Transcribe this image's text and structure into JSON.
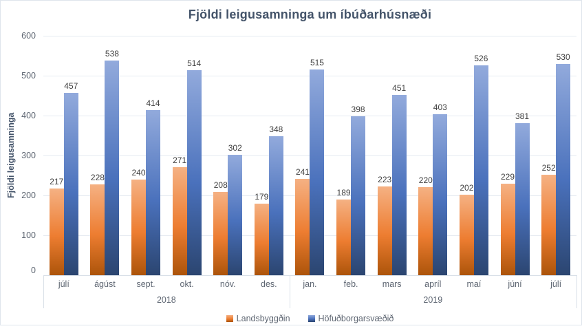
{
  "chart": {
    "title": "Fjöldi leigusamninga  um íbúðarhúsnæði"
  },
  "chart_data": {
    "type": "bar",
    "title": "Fjöldi leigusamninga  um íbúðarhúsnæði",
    "xlabel": "",
    "ylabel": "Fjöldi leigusamninga",
    "ylim": [
      0,
      600
    ],
    "yticks": [
      0,
      100,
      200,
      300,
      400,
      500,
      600
    ],
    "grid": true,
    "legend_position": "bottom",
    "data_labels": true,
    "categories": [
      "júlí",
      "ágúst",
      "sept.",
      "okt.",
      "nóv.",
      "des.",
      "jan.",
      "feb.",
      "mars",
      "apríl",
      "maí",
      "júní",
      "júlí"
    ],
    "year_groups": [
      {
        "label": "2018",
        "span": 6
      },
      {
        "label": "2019",
        "span": 7
      }
    ],
    "series": [
      {
        "name": "Landsbyggðin",
        "colors": {
          "top": "#F5B183",
          "mid": "#ED7D31",
          "bottom": "#AC540A"
        },
        "values": [
          217,
          228,
          240,
          271,
          208,
          179,
          241,
          189,
          223,
          220,
          202,
          229,
          252
        ]
      },
      {
        "name": "Höfuðborgarsvæðið",
        "colors": {
          "top": "#92AADC",
          "mid": "#4A71BC",
          "bottom": "#2B4570"
        },
        "values": [
          457,
          538,
          414,
          514,
          302,
          348,
          515,
          398,
          451,
          403,
          526,
          381,
          530
        ]
      }
    ],
    "colors": {
      "title_text": "#44546A",
      "axis_text": "#5E6672",
      "data_label_text": "#404040",
      "gridline": "#E5EAF1",
      "axis_line": "#D9E0E8"
    }
  }
}
